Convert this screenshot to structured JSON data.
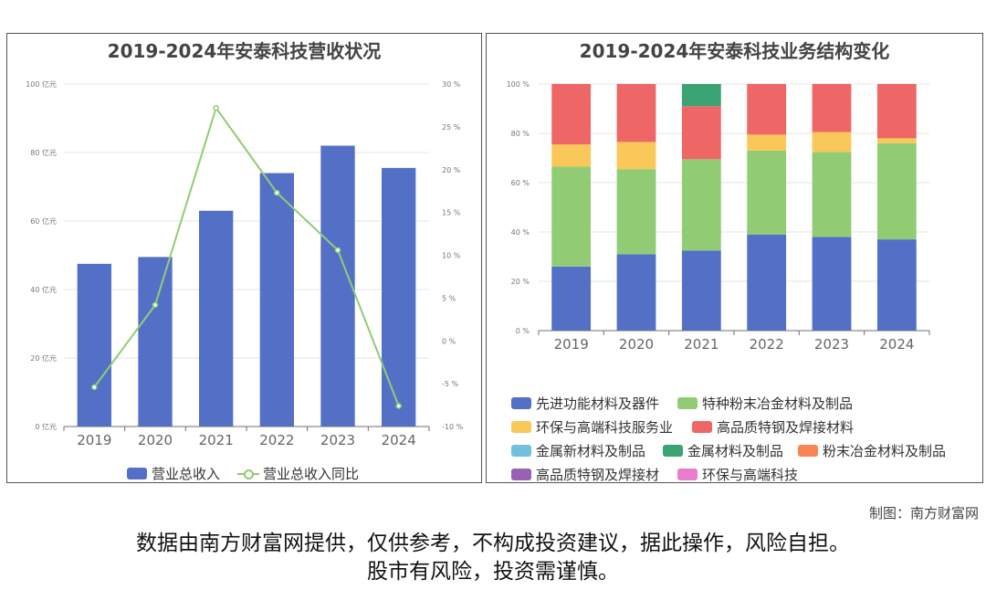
{
  "chart_data": [
    {
      "type": "bar+line",
      "title": "2019-2024年安泰科技营收状况",
      "categories": [
        "2019",
        "2020",
        "2021",
        "2022",
        "2023",
        "2024"
      ],
      "y_left": {
        "ticks": [
          "0 亿元",
          "20 亿元",
          "40 亿元",
          "60 亿元",
          "80 亿元",
          "100 亿元"
        ],
        "min": 0,
        "max": 100
      },
      "y_right": {
        "ticks": [
          "-10 %",
          "-5 %",
          "0 %",
          "5 %",
          "10 %",
          "15 %",
          "20 %",
          "25 %",
          "30 %"
        ],
        "min": -10,
        "max": 30
      },
      "series": [
        {
          "name": "营业总收入",
          "type": "bar",
          "axis": "left",
          "color": "#5470c6",
          "values": [
            47.5,
            49.5,
            63.0,
            74.0,
            82.0,
            75.5
          ]
        },
        {
          "name": "营业总收入同比",
          "type": "line",
          "axis": "right",
          "color": "#91cc75",
          "values": [
            -5.4,
            4.2,
            27.2,
            17.3,
            10.6,
            -7.6
          ]
        }
      ],
      "grid": true,
      "legend": "bottom-center"
    },
    {
      "type": "stacked-bar",
      "title": "2019-2024年安泰科技业务结构变化",
      "categories": [
        "2019",
        "2020",
        "2021",
        "2022",
        "2023",
        "2024"
      ],
      "y": {
        "ticks": [
          "0 %",
          "20 %",
          "40 %",
          "60 %",
          "80 %",
          "100 %"
        ],
        "min": 0,
        "max": 100
      },
      "series": [
        {
          "name": "先进功能材料及器件",
          "color": "#5470c6",
          "values": [
            26,
            31,
            32.5,
            39,
            38,
            37
          ]
        },
        {
          "name": "特种粉末冶金材料及制品",
          "color": "#91cc75",
          "values": [
            40.5,
            34.5,
            37,
            34,
            34.5,
            39
          ]
        },
        {
          "name": "环保与高端科技服务业",
          "color": "#fac858",
          "values": [
            9,
            11,
            0,
            6.5,
            8,
            2
          ]
        },
        {
          "name": "高品质特钢及焊接材料",
          "color": "#ee6666",
          "values": [
            24.5,
            23.5,
            21.5,
            20.5,
            19.5,
            22
          ]
        },
        {
          "name": "金属新材料及制品",
          "color": "#73c0de",
          "values": [
            0,
            0,
            0,
            0,
            0,
            0
          ]
        },
        {
          "name": "金属材料及制品",
          "color": "#3ba272",
          "values": [
            0,
            0,
            9,
            0,
            0,
            0
          ]
        },
        {
          "name": "粉末冶金材料及制品",
          "color": "#fc8452",
          "values": [
            0,
            0,
            0,
            0,
            0,
            0
          ]
        },
        {
          "name": "高品质特钢及焊接材",
          "color": "#9a60b4",
          "values": [
            0,
            0,
            0,
            0,
            0,
            0
          ]
        },
        {
          "name": "环保与高端科技",
          "color": "#ea7ccc",
          "values": [
            0,
            0,
            0,
            0,
            0,
            0
          ]
        }
      ],
      "legend": "bottom"
    }
  ],
  "credit": "制图：南方财富网",
  "disclaimer": {
    "line1": "数据由南方财富网提供，仅供参考，不构成投资建议，据此操作，风险自担。",
    "line2": "股市有风险，投资需谨慎。"
  }
}
